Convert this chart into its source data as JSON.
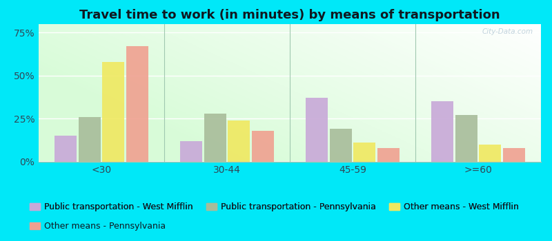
{
  "title": "Travel time to work (in minutes) by means of transportation",
  "categories": [
    "<30",
    "30-44",
    "45-59",
    ">=60"
  ],
  "series": [
    {
      "name": "Public transportation - West Mifflin",
      "color": "#c8a8d8",
      "values": [
        15,
        12,
        37,
        35
      ]
    },
    {
      "name": "Public transportation - Pennsylvania",
      "color": "#a8bc9a",
      "values": [
        26,
        28,
        19,
        27
      ]
    },
    {
      "name": "Other means - West Mifflin",
      "color": "#f0e860",
      "values": [
        58,
        24,
        11,
        10
      ]
    },
    {
      "name": "Other means - Pennsylvania",
      "color": "#f0a090",
      "values": [
        67,
        18,
        8,
        8
      ]
    }
  ],
  "ylim": [
    0,
    80
  ],
  "yticks": [
    0,
    25,
    50,
    75
  ],
  "ytick_labels": [
    "0%",
    "25%",
    "50%",
    "75%"
  ],
  "bar_width": 0.19,
  "background_top": "#f5fff5",
  "background_bottom": "#d0eac0",
  "background_right": "#f8f8ff",
  "outer_background": "#00e8f8",
  "title_fontsize": 13,
  "axis_fontsize": 10,
  "legend_fontsize": 9,
  "watermark": "City-Data.com",
  "legend_order": [
    0,
    1,
    2,
    3
  ],
  "legend_ncol_row1": 3,
  "separator_color": "#a0c8b0",
  "grid_color": "#ffffff",
  "tick_color": "#304858",
  "title_color": "#101820"
}
